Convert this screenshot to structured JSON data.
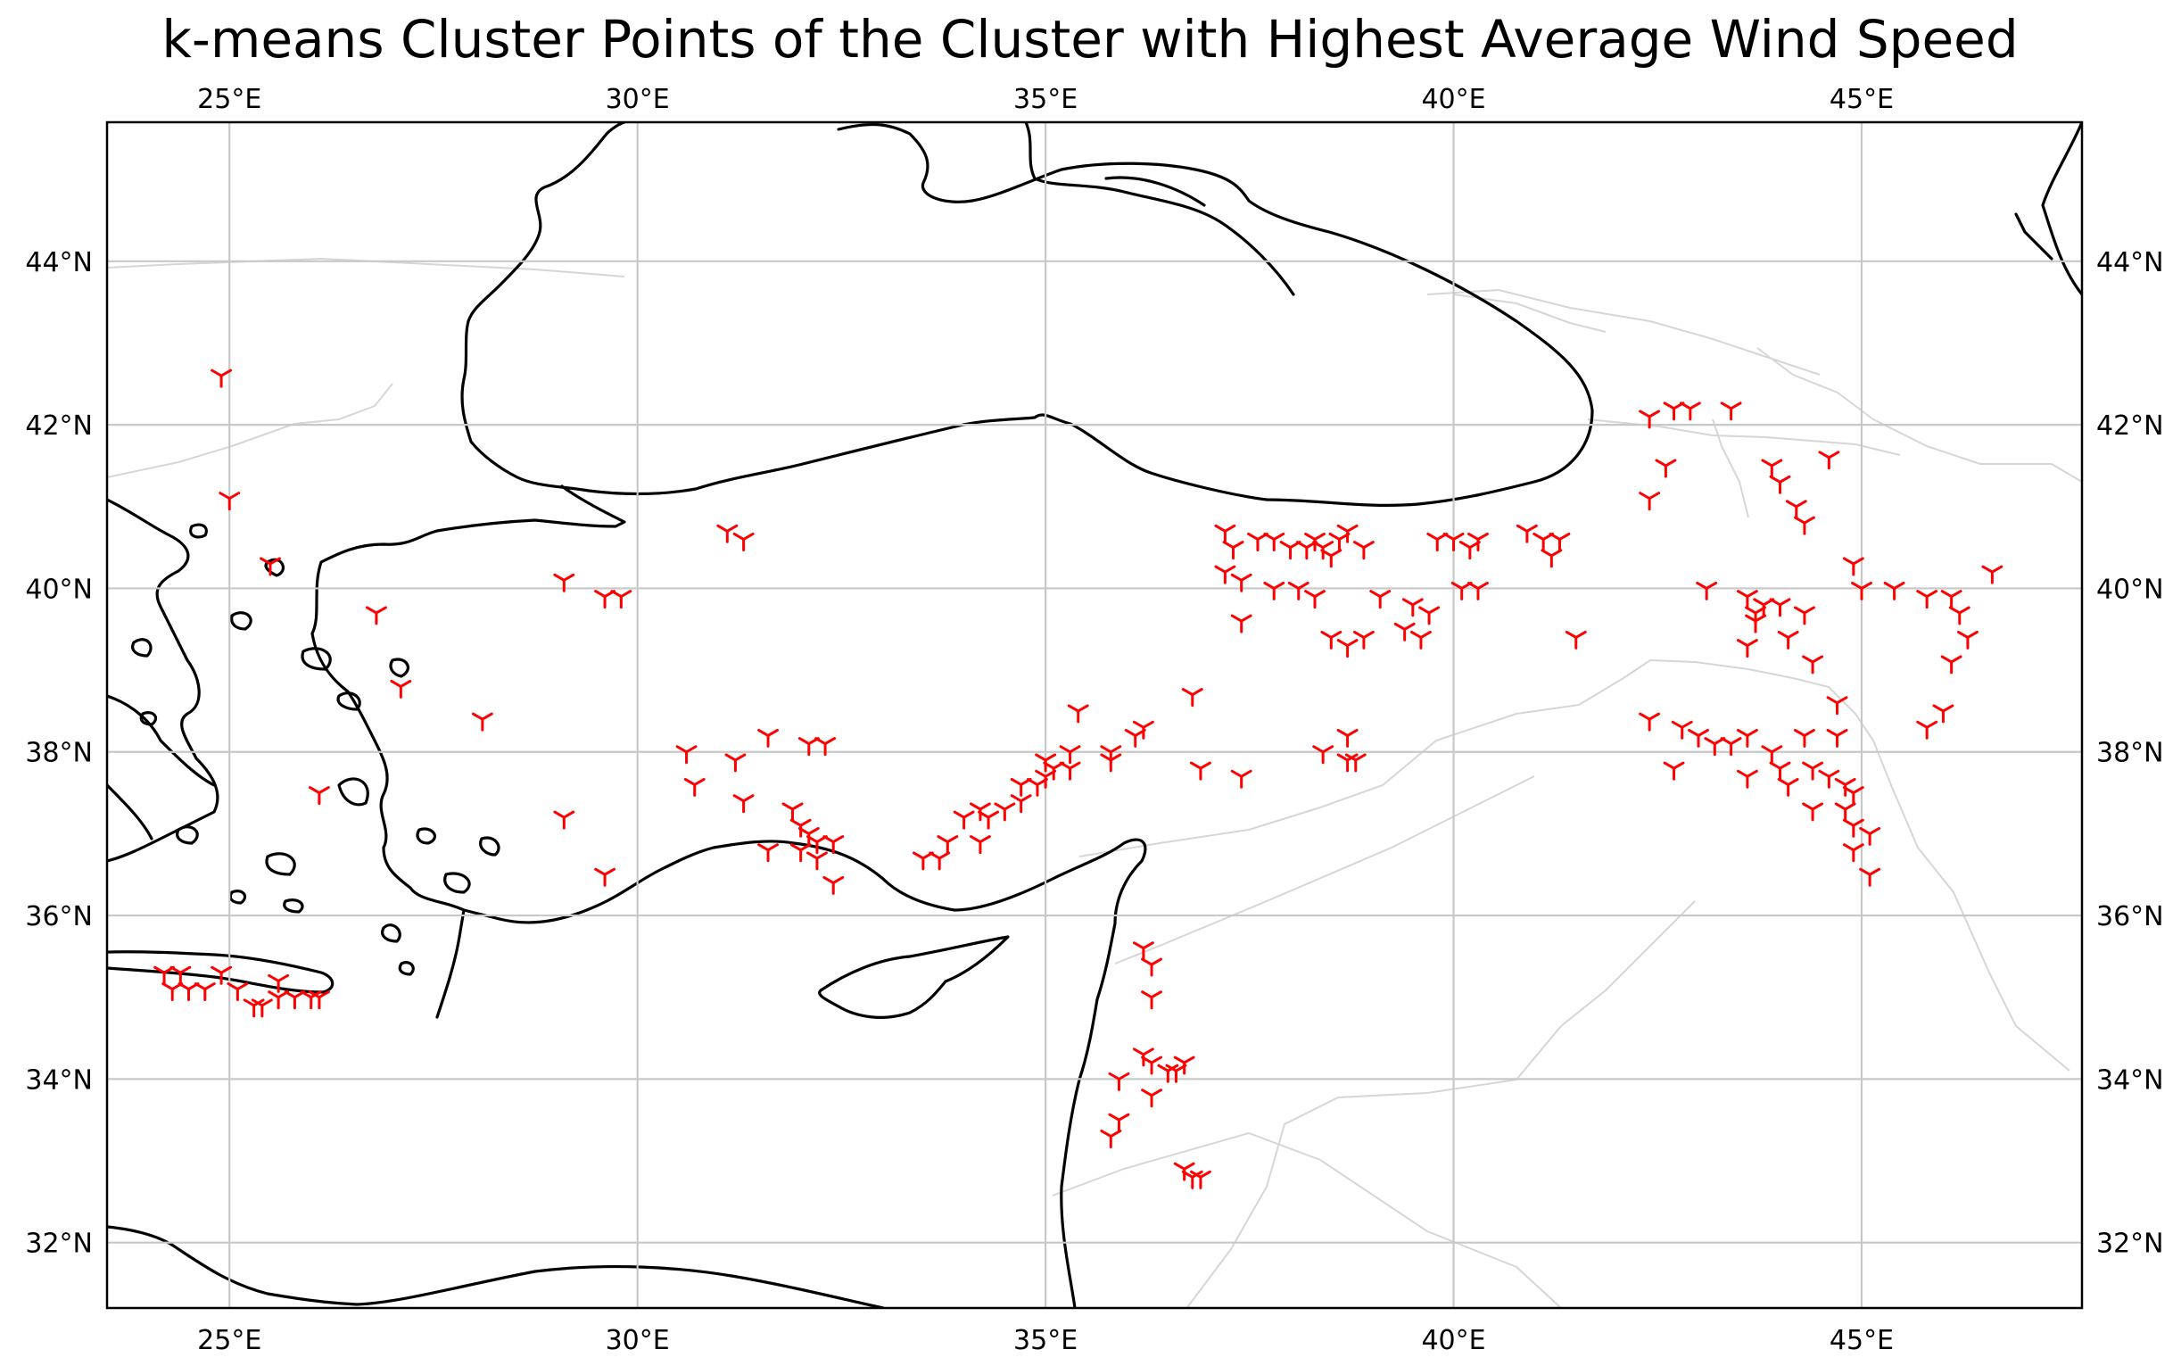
{
  "chart_data": {
    "type": "scatter",
    "title": "k-means Cluster Points of the Cluster with Highest Average Wind Speed",
    "xlabel": "",
    "ylabel": "",
    "projection": "PlateCarree map",
    "xlim": [
      23.5,
      47.7
    ],
    "ylim": [
      31.2,
      45.7
    ],
    "grid": true,
    "legend": "none",
    "x_ticks": [
      25,
      30,
      35,
      40,
      45
    ],
    "x_tick_labels": [
      "25°E",
      "30°E",
      "35°E",
      "40°E",
      "45°E"
    ],
    "y_ticks": [
      32,
      34,
      36,
      38,
      40,
      42,
      44
    ],
    "y_tick_labels": [
      "32°N",
      "34°N",
      "36°N",
      "38°N",
      "40°N",
      "42°N",
      "44°N"
    ],
    "marker": "tri_down",
    "marker_color": "#ff0000",
    "points": [
      [
        24.9,
        42.6
      ],
      [
        25.0,
        41.1
      ],
      [
        25.5,
        40.3
      ],
      [
        26.8,
        39.7
      ],
      [
        27.1,
        38.8
      ],
      [
        28.1,
        38.4
      ],
      [
        26.1,
        37.5
      ],
      [
        24.2,
        35.3
      ],
      [
        24.4,
        35.3
      ],
      [
        24.9,
        35.3
      ],
      [
        25.6,
        35.2
      ],
      [
        24.3,
        35.1
      ],
      [
        24.5,
        35.1
      ],
      [
        24.7,
        35.1
      ],
      [
        25.1,
        35.1
      ],
      [
        25.6,
        35.0
      ],
      [
        25.8,
        35.0
      ],
      [
        26.0,
        35.0
      ],
      [
        26.1,
        35.0
      ],
      [
        25.3,
        34.9
      ],
      [
        25.4,
        34.9
      ],
      [
        29.1,
        40.1
      ],
      [
        29.6,
        39.9
      ],
      [
        29.8,
        39.9
      ],
      [
        29.1,
        37.2
      ],
      [
        29.6,
        36.5
      ],
      [
        31.1,
        40.7
      ],
      [
        31.3,
        40.6
      ],
      [
        30.6,
        38.0
      ],
      [
        30.7,
        37.6
      ],
      [
        31.2,
        37.9
      ],
      [
        31.6,
        38.2
      ],
      [
        31.3,
        37.4
      ],
      [
        31.6,
        36.8
      ],
      [
        32.1,
        38.1
      ],
      [
        32.3,
        38.1
      ],
      [
        31.9,
        37.3
      ],
      [
        32.0,
        37.1
      ],
      [
        32.1,
        37.0
      ],
      [
        32.2,
        36.9
      ],
      [
        32.4,
        36.9
      ],
      [
        32.0,
        36.8
      ],
      [
        32.2,
        36.7
      ],
      [
        32.4,
        36.4
      ],
      [
        33.5,
        36.7
      ],
      [
        33.7,
        36.7
      ],
      [
        33.8,
        36.9
      ],
      [
        34.0,
        37.2
      ],
      [
        34.2,
        37.3
      ],
      [
        34.3,
        37.2
      ],
      [
        34.5,
        37.3
      ],
      [
        34.7,
        37.4
      ],
      [
        34.7,
        37.6
      ],
      [
        34.9,
        37.6
      ],
      [
        35.0,
        37.7
      ],
      [
        34.2,
        36.9
      ],
      [
        35.0,
        37.9
      ],
      [
        35.1,
        37.8
      ],
      [
        35.3,
        37.8
      ],
      [
        35.3,
        38.0
      ],
      [
        35.4,
        38.5
      ],
      [
        35.8,
        38.0
      ],
      [
        35.8,
        37.9
      ],
      [
        36.1,
        38.2
      ],
      [
        36.2,
        38.3
      ],
      [
        36.8,
        38.7
      ],
      [
        36.9,
        37.8
      ],
      [
        37.4,
        37.7
      ],
      [
        37.2,
        40.7
      ],
      [
        37.3,
        40.5
      ],
      [
        37.2,
        40.2
      ],
      [
        37.4,
        40.1
      ],
      [
        37.4,
        39.6
      ],
      [
        37.6,
        40.6
      ],
      [
        37.8,
        40.6
      ],
      [
        38.0,
        40.5
      ],
      [
        38.2,
        40.5
      ],
      [
        38.4,
        40.5
      ],
      [
        38.5,
        40.4
      ],
      [
        38.3,
        40.6
      ],
      [
        38.6,
        40.6
      ],
      [
        38.7,
        40.7
      ],
      [
        38.9,
        40.5
      ],
      [
        37.8,
        40.0
      ],
      [
        38.1,
        40.0
      ],
      [
        38.3,
        39.9
      ],
      [
        38.5,
        39.4
      ],
      [
        38.7,
        39.3
      ],
      [
        38.9,
        39.4
      ],
      [
        39.1,
        39.9
      ],
      [
        39.5,
        39.8
      ],
      [
        39.7,
        39.7
      ],
      [
        39.4,
        39.5
      ],
      [
        39.6,
        39.4
      ],
      [
        39.8,
        40.6
      ],
      [
        40.0,
        40.6
      ],
      [
        40.2,
        40.5
      ],
      [
        40.3,
        40.6
      ],
      [
        40.1,
        40.0
      ],
      [
        40.3,
        40.0
      ],
      [
        40.9,
        40.7
      ],
      [
        41.1,
        40.6
      ],
      [
        41.2,
        40.4
      ],
      [
        41.3,
        40.6
      ],
      [
        41.5,
        39.4
      ],
      [
        38.4,
        38.0
      ],
      [
        38.7,
        37.9
      ],
      [
        38.8,
        37.9
      ],
      [
        38.7,
        38.2
      ],
      [
        42.4,
        42.1
      ],
      [
        42.7,
        42.2
      ],
      [
        42.9,
        42.2
      ],
      [
        43.4,
        42.2
      ],
      [
        42.6,
        41.5
      ],
      [
        42.4,
        41.1
      ],
      [
        43.9,
        41.5
      ],
      [
        44.0,
        41.3
      ],
      [
        44.2,
        41.0
      ],
      [
        44.3,
        40.8
      ],
      [
        44.6,
        41.6
      ],
      [
        44.9,
        40.3
      ],
      [
        45.0,
        40.0
      ],
      [
        45.4,
        40.0
      ],
      [
        45.8,
        39.9
      ],
      [
        46.1,
        39.9
      ],
      [
        46.2,
        39.7
      ],
      [
        46.3,
        39.4
      ],
      [
        46.1,
        39.1
      ],
      [
        46.6,
        40.2
      ],
      [
        43.1,
        40.0
      ],
      [
        43.6,
        39.9
      ],
      [
        43.7,
        39.7
      ],
      [
        43.8,
        39.8
      ],
      [
        44.0,
        39.8
      ],
      [
        43.7,
        39.6
      ],
      [
        44.3,
        39.7
      ],
      [
        43.6,
        39.3
      ],
      [
        44.1,
        39.4
      ],
      [
        44.4,
        39.1
      ],
      [
        44.7,
        38.6
      ],
      [
        44.7,
        38.2
      ],
      [
        46.0,
        38.5
      ],
      [
        45.8,
        38.3
      ],
      [
        42.4,
        38.4
      ],
      [
        42.8,
        38.3
      ],
      [
        43.0,
        38.2
      ],
      [
        43.2,
        38.1
      ],
      [
        43.4,
        38.1
      ],
      [
        43.6,
        38.2
      ],
      [
        43.9,
        38.0
      ],
      [
        44.0,
        37.8
      ],
      [
        44.1,
        37.6
      ],
      [
        44.3,
        38.2
      ],
      [
        44.4,
        37.8
      ],
      [
        44.6,
        37.7
      ],
      [
        44.8,
        37.6
      ],
      [
        44.9,
        37.5
      ],
      [
        44.8,
        37.3
      ],
      [
        44.9,
        37.1
      ],
      [
        45.1,
        37.0
      ],
      [
        44.9,
        36.8
      ],
      [
        45.1,
        36.5
      ],
      [
        44.4,
        37.3
      ],
      [
        42.7,
        37.8
      ],
      [
        43.6,
        37.7
      ],
      [
        36.2,
        35.6
      ],
      [
        36.3,
        35.4
      ],
      [
        36.3,
        35.0
      ],
      [
        36.2,
        34.3
      ],
      [
        36.3,
        34.2
      ],
      [
        36.5,
        34.1
      ],
      [
        36.6,
        34.1
      ],
      [
        36.7,
        34.2
      ],
      [
        35.9,
        34.0
      ],
      [
        36.3,
        33.8
      ],
      [
        35.9,
        33.5
      ],
      [
        35.8,
        33.3
      ],
      [
        36.7,
        32.9
      ],
      [
        36.9,
        32.8
      ],
      [
        36.8,
        32.8
      ]
    ]
  }
}
